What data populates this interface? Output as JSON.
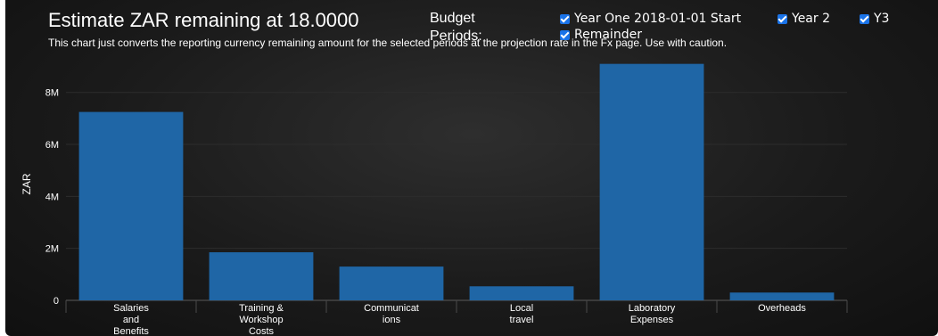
{
  "header": {
    "title": "Estimate ZAR remaining at 18.0000",
    "subtitle": "This chart just converts the reporting currency remaining amount for the selected periods at the projection rate in the Fx page. Use with caution."
  },
  "periods": {
    "label": "Budget Periods:",
    "options": [
      {
        "label": "Year One 2018-01-01 Start",
        "checked": true
      },
      {
        "label": "Year 2",
        "checked": true
      },
      {
        "label": "Y3",
        "checked": true
      },
      {
        "label": "Remainder",
        "checked": true
      }
    ]
  },
  "colors": {
    "bar": "#1f66a6",
    "accent": "#1a73e8"
  },
  "chart_data": {
    "type": "bar",
    "title": "Estimate ZAR remaining at 18.0000",
    "ylabel": "ZAR",
    "xlabel": "",
    "ylim": [
      0,
      9500000
    ],
    "yticks": [
      0,
      2000000,
      4000000,
      6000000,
      8000000
    ],
    "ytick_labels": [
      "0",
      "2M",
      "4M",
      "6M",
      "8M"
    ],
    "grid": true,
    "categories": [
      "Salaries and Benefits",
      "Training & Workshop Costs",
      "Communications",
      "Local travel",
      "Laboratory Expenses",
      "Overheads"
    ],
    "category_lines": [
      [
        "Salaries",
        "and",
        "Benefits"
      ],
      [
        "Training &",
        "Workshop",
        "Costs"
      ],
      [
        "Communicat",
        "ions"
      ],
      [
        "Local",
        "travel"
      ],
      [
        "Laboratory",
        "Expenses"
      ],
      [
        "Overheads"
      ]
    ],
    "values": [
      7250000,
      1850000,
      1300000,
      540000,
      9100000,
      300000
    ]
  }
}
